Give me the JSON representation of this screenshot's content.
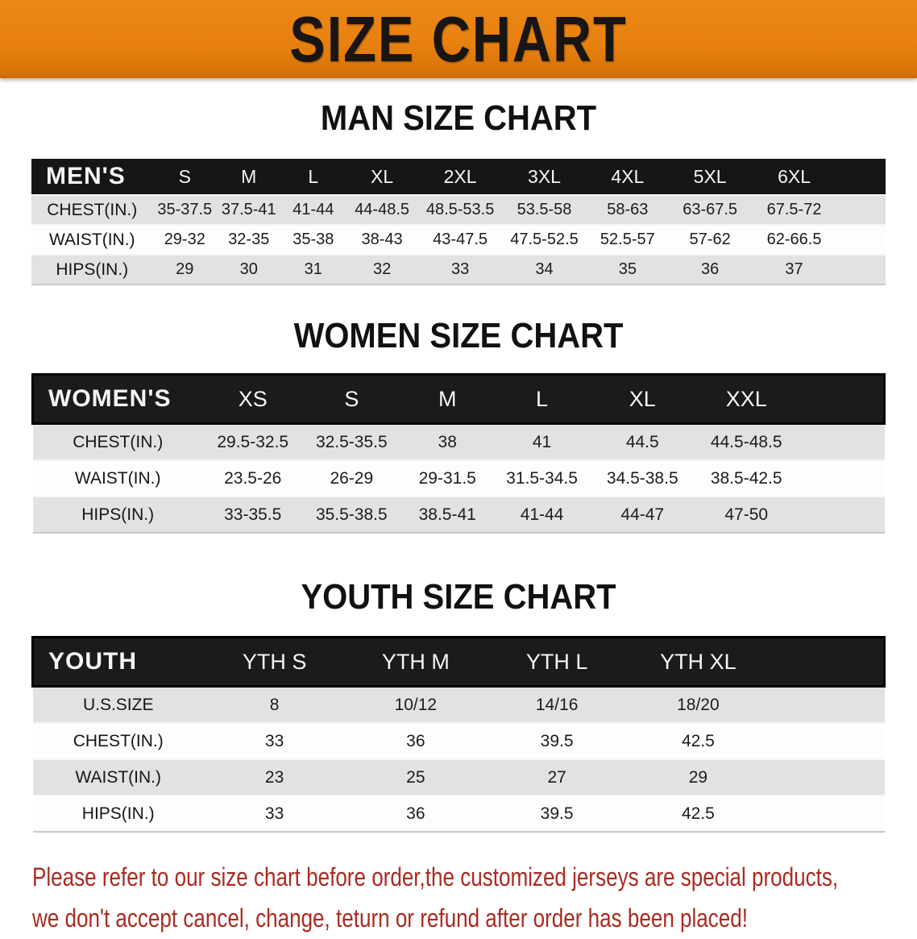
{
  "banner": {
    "title": "SIZE CHART"
  },
  "colors": {
    "banner_orange": "#e8810f",
    "header_black": "#161616",
    "row_gray": "#e2e2e2",
    "row_white": "#fdfdfd",
    "disclaimer_red": "#ab2b20"
  },
  "sections": [
    {
      "heading": "MAN SIZE CHART",
      "table": {
        "header_label": "MEN'S",
        "columns": [
          "S",
          "M",
          "L",
          "XL",
          "2XL",
          "3XL",
          "4XL",
          "5XL",
          "6XL"
        ],
        "rows": [
          {
            "label": "CHEST(IN.)",
            "values": [
              "35-37.5",
              "37.5-41",
              "41-44",
              "44-48.5",
              "48.5-53.5",
              "53.5-58",
              "58-63",
              "63-67.5",
              "67.5-72"
            ]
          },
          {
            "label": "WAIST(IN.)",
            "values": [
              "29-32",
              "32-35",
              "35-38",
              "38-43",
              "43-47.5",
              "47.5-52.5",
              "52.5-57",
              "57-62",
              "62-66.5"
            ]
          },
          {
            "label": "HIPS(IN.)",
            "values": [
              "29",
              "30",
              "31",
              "32",
              "33",
              "34",
              "35",
              "36",
              "37"
            ]
          }
        ]
      }
    },
    {
      "heading": "WOMEN SIZE CHART",
      "table": {
        "header_label": "WOMEN'S",
        "columns": [
          "XS",
          "S",
          "M",
          "L",
          "XL",
          "XXL"
        ],
        "rows": [
          {
            "label": "CHEST(IN.)",
            "values": [
              "29.5-32.5",
              "32.5-35.5",
              "38",
              "41",
              "44.5",
              "44.5-48.5"
            ]
          },
          {
            "label": "WAIST(IN.)",
            "values": [
              "23.5-26",
              "26-29",
              "29-31.5",
              "31.5-34.5",
              "34.5-38.5",
              "38.5-42.5"
            ]
          },
          {
            "label": "HIPS(IN.)",
            "values": [
              "33-35.5",
              "35.5-38.5",
              "38.5-41",
              "41-44",
              "44-47",
              "47-50"
            ]
          }
        ]
      }
    },
    {
      "heading": "YOUTH SIZE CHART",
      "table": {
        "header_label": "YOUTH",
        "columns": [
          "YTH S",
          "YTH M",
          "YTH L",
          "YTH XL"
        ],
        "rows": [
          {
            "label": "U.S.SIZE",
            "values": [
              "8",
              "10/12",
              "14/16",
              "18/20"
            ]
          },
          {
            "label": "CHEST(IN.)",
            "values": [
              "33",
              "36",
              "39.5",
              "42.5"
            ]
          },
          {
            "label": "WAIST(IN.)",
            "values": [
              "23",
              "25",
              "27",
              "29"
            ]
          },
          {
            "label": "HIPS(IN.)",
            "values": [
              "33",
              "36",
              "39.5",
              "42.5"
            ]
          }
        ]
      }
    }
  ],
  "disclaimer": {
    "line1": "Please refer to our size chart before order,the customized jerseys are special products,",
    "line2": "we don't accept cancel, change, teturn or refund after order has been placed!"
  }
}
